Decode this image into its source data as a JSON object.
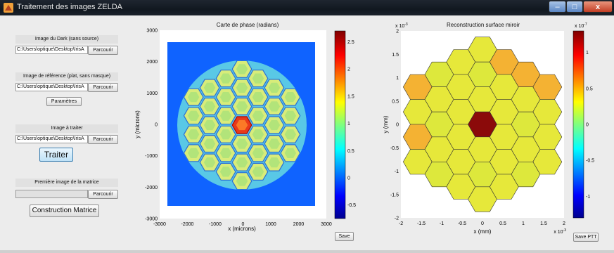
{
  "window": {
    "title": "Traitement des images ZELDA",
    "controls": {
      "minimize": "–",
      "maximize": "□",
      "close": "x"
    }
  },
  "left_panel": {
    "dark": {
      "label": "Image du Dark (sans source)",
      "path": "C:\\Users\\optique\\Desktop\\IrisA",
      "browse": "Parcourir"
    },
    "reference": {
      "label": "Image de référence (plat, sans masque)",
      "path": "C:\\Users\\optique\\Desktop\\IrisA",
      "browse": "Parcourir"
    },
    "params_button": "Paramètres",
    "to_process": {
      "label": "Image à traiter",
      "path": "C:\\Users\\optique\\Desktop\\IrisA",
      "browse": "Parcourir"
    },
    "process_button": "Traiter",
    "matrix_first": {
      "label": "Première image de la matrice",
      "path": "",
      "browse": "Parcourir"
    },
    "build_matrix_button": "Construction Matrice"
  },
  "phase_map": {
    "title": "Carte de phase (radians)",
    "xlabel": "x (microns)",
    "ylabel": "y (microns)",
    "xticks": [
      "-3000",
      "-2000",
      "-1000",
      "0",
      "1000",
      "2000",
      "3000"
    ],
    "yticks": [
      "3000",
      "2000",
      "1000",
      "0",
      "-1000",
      "-2000",
      "-3000"
    ],
    "colorbar_ticks": [
      "2.5",
      "2",
      "1.5",
      "1",
      "0.5",
      "0",
      "-0.5"
    ],
    "colorbar_range": [
      -0.75,
      2.7
    ],
    "save_button": "Save"
  },
  "surface": {
    "title": "Reconstruction surface miroir",
    "exponent_top": "x 10",
    "exponent_top_power": "-3",
    "exponent_bottom": "x 10",
    "exponent_bottom_power": "-3",
    "xlabel": "x (mm)",
    "ylabel": "y (mm)",
    "xticks": [
      "-2",
      "-1.5",
      "-1",
      "-0.5",
      "0",
      "0.5",
      "1",
      "1.5",
      "2"
    ],
    "yticks": [
      "2",
      "1.5",
      "1",
      "0.5",
      "0",
      "-0.5",
      "-1",
      "-1.5",
      "-2"
    ],
    "colorbar_exponent": "x 10",
    "colorbar_exponent_power": "-7",
    "colorbar_ticks": [
      "1",
      "0.5",
      "0",
      "-0.5",
      "-1"
    ],
    "colorbar_range": [
      -1.3,
      1.3
    ],
    "save_button": "Save PTT"
  },
  "colors": {
    "plot_bg": "#0f63ff",
    "segment_fill": "#e6e83a",
    "segment_warm": "#f4b233",
    "segment_hot": "#8b0a0a",
    "phase_hot": "#e8391a"
  }
}
